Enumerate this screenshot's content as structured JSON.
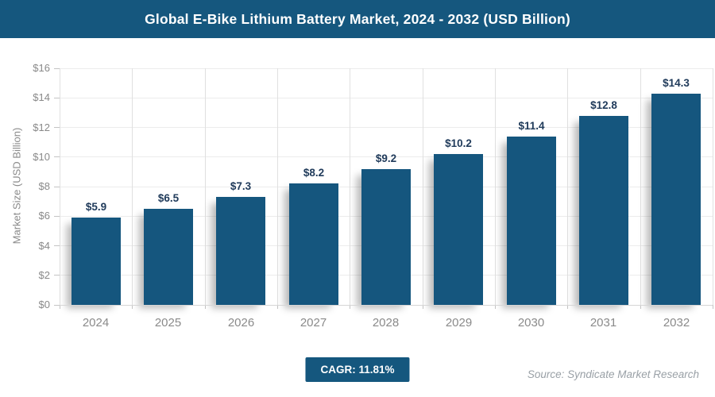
{
  "header": {
    "title": "Global E-Bike Lithium Battery Market, 2024 - 2032 (USD Billion)"
  },
  "chart_data": {
    "type": "bar",
    "title": "Global E-Bike Lithium Battery Market, 2024 - 2032 (USD Billion)",
    "categories": [
      "2024",
      "2025",
      "2026",
      "2027",
      "2028",
      "2029",
      "2030",
      "2031",
      "2032"
    ],
    "values": [
      5.9,
      6.5,
      7.3,
      8.2,
      9.2,
      10.2,
      11.4,
      12.8,
      14.3
    ],
    "value_labels": [
      "$5.9",
      "$6.5",
      "$7.3",
      "$8.2",
      "$9.2",
      "$10.2",
      "$11.4",
      "$12.8",
      "$14.3"
    ],
    "xlabel": "",
    "ylabel": "Market Size (USD Billion)",
    "ylim": [
      0,
      16
    ],
    "ytick_step": 2,
    "ytick_labels": [
      "$0",
      "$2",
      "$4",
      "$6",
      "$8",
      "$10",
      "$12",
      "$14",
      "$16"
    ],
    "grid": true,
    "legend_position": "none",
    "bar_color": "#15567E",
    "value_label_color": "#1F3A5A"
  },
  "footer": {
    "cagr_label": "CAGR: 11.81%",
    "source": "Source: Syndicate Market Research"
  },
  "colors": {
    "header_bg": "#15577E",
    "accent_blue": "#15567E",
    "axis_text": "#8A8A8A",
    "gridline_h": "#ECECEC",
    "gridline_v": "#E0E0E0"
  }
}
